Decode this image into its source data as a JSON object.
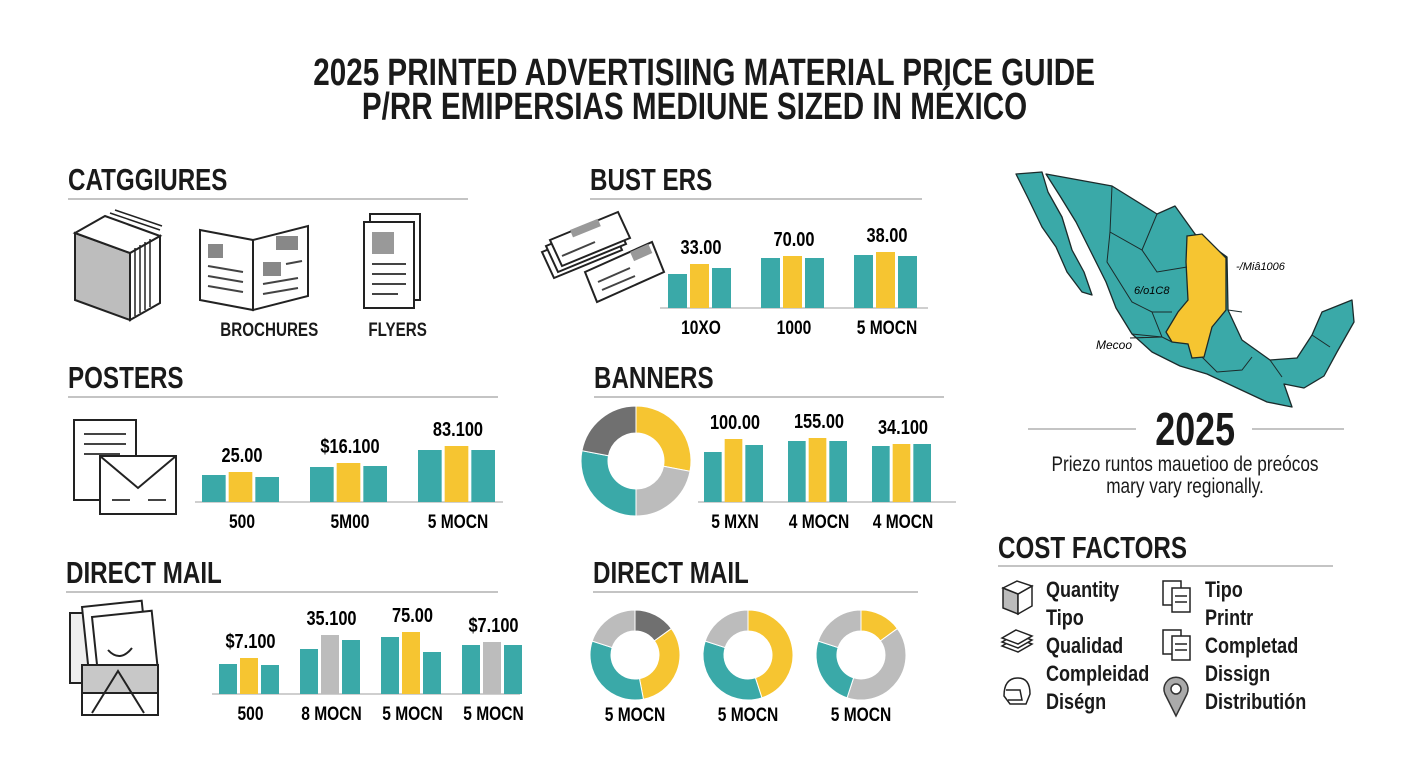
{
  "header": {
    "title": "2025 PRINTED ADVERTISIING MATERIAL PRICE GUIDE",
    "subtitle": "P/RR EMIPERSIAS MEDIUNE SIZED IN MÉXICO"
  },
  "colors": {
    "teal": "#3aa9a8",
    "yellow": "#f6c531",
    "light_gray": "#bcbcbc",
    "dark_gray": "#707070"
  },
  "categories": {
    "heading": "CATGGIURES",
    "items": [
      {
        "icon": "book-stack-icon",
        "label": ""
      },
      {
        "icon": "brochure-icon",
        "label": "BROCHURES"
      },
      {
        "icon": "flyer-icon",
        "label": "FLYERS"
      }
    ]
  },
  "chart_data": [
    {
      "id": "busters",
      "type": "bar",
      "title": "BUST ERS",
      "icon": "business-cards-icon",
      "categories": [
        "10XO",
        "1000",
        "5 MOCN"
      ],
      "group_labels": [
        "33.00",
        "70.00",
        "38.00"
      ],
      "series_colors": [
        [
          "teal",
          "yellow",
          "teal"
        ],
        [
          "teal",
          "yellow",
          "teal"
        ],
        [
          "teal",
          "yellow",
          "teal"
        ]
      ],
      "values": [
        [
          34,
          44,
          40
        ],
        [
          50,
          52,
          50
        ],
        [
          53,
          56,
          52
        ]
      ]
    },
    {
      "id": "posters",
      "type": "bar",
      "title": "POSTERS",
      "icon": "letter-envelope-icon",
      "categories": [
        "500",
        "5M00",
        "5 MOCN"
      ],
      "group_labels": [
        "25.00",
        "$16.100",
        "83.100"
      ],
      "series_colors": [
        [
          "teal",
          "yellow",
          "teal"
        ],
        [
          "teal",
          "yellow",
          "teal"
        ],
        [
          "teal",
          "yellow",
          "teal"
        ]
      ],
      "values": [
        [
          27,
          30,
          25
        ],
        [
          35,
          39,
          36
        ],
        [
          52,
          56,
          52
        ]
      ]
    },
    {
      "id": "banners",
      "type": "bar",
      "title": "BANNERS",
      "categories": [
        "5 MXN",
        "4 MOCN",
        "4 MOCN"
      ],
      "group_labels": [
        "100.00",
        "155.00",
        "34.100"
      ],
      "series_colors": [
        [
          "teal",
          "yellow",
          "teal"
        ],
        [
          "teal",
          "yellow",
          "teal"
        ],
        [
          "teal",
          "yellow",
          "teal"
        ]
      ],
      "values": [
        [
          50,
          63,
          57
        ],
        [
          61,
          64,
          61
        ],
        [
          56,
          58,
          58
        ]
      ]
    },
    {
      "id": "banners-donut",
      "type": "pie",
      "slices": [
        {
          "color": "yellow",
          "value": 28
        },
        {
          "color": "light_gray",
          "value": 22
        },
        {
          "color": "teal",
          "value": 28
        },
        {
          "color": "dark_gray",
          "value": 22
        }
      ]
    },
    {
      "id": "direct-mail-bars",
      "type": "bar",
      "title": "DIRECT MAIL",
      "icon": "mail-box-icon",
      "categories": [
        "500",
        "8 MOCN",
        "5 MOCN",
        "5 MOCN"
      ],
      "group_labels": [
        "$7.100",
        "35.100",
        "75.00",
        "$7.100"
      ],
      "series_colors": [
        [
          "teal",
          "yellow",
          "teal"
        ],
        [
          "teal",
          "light_gray",
          "teal"
        ],
        [
          "teal",
          "yellow",
          "teal"
        ],
        [
          "teal",
          "light_gray",
          "teal"
        ]
      ],
      "values": [
        [
          30,
          36,
          29
        ],
        [
          45,
          59,
          54
        ],
        [
          57,
          62,
          42
        ],
        [
          49,
          52,
          49
        ]
      ]
    },
    {
      "id": "direct-mail-donuts",
      "type": "pie",
      "title": "DIRECT MAIL",
      "donuts": [
        {
          "label": "5 MOCN",
          "slices": [
            {
              "color": "dark_gray",
              "value": 15
            },
            {
              "color": "yellow",
              "value": 32
            },
            {
              "color": "teal",
              "value": 33
            },
            {
              "color": "light_gray",
              "value": 20
            }
          ]
        },
        {
          "label": "5 MOCN",
          "slices": [
            {
              "color": "yellow",
              "value": 45
            },
            {
              "color": "teal",
              "value": 35
            },
            {
              "color": "light_gray",
              "value": 20
            }
          ]
        },
        {
          "label": "5 MOCN",
          "slices": [
            {
              "color": "yellow",
              "value": 15
            },
            {
              "color": "light_gray",
              "value": 40
            },
            {
              "color": "teal",
              "value": 25
            },
            {
              "color": "light_gray",
              "value": 20
            }
          ]
        }
      ]
    }
  ],
  "map": {
    "labels": [
      "-/Miâ1006",
      "6/o1C8",
      "Mecoo"
    ]
  },
  "year_block": {
    "year": "2025",
    "note_line1": "Priezo runtos mauetioo de preócos",
    "note_line2": "mary vary regionally."
  },
  "cost_factors": {
    "heading": "COST FACTORS",
    "left": [
      "Quantity",
      "Tipo",
      "Qualidad",
      "Compleidad",
      "Diségn"
    ],
    "right": [
      "Tipo",
      "Printr",
      "Completad",
      "Dissign",
      "Distributión"
    ]
  }
}
